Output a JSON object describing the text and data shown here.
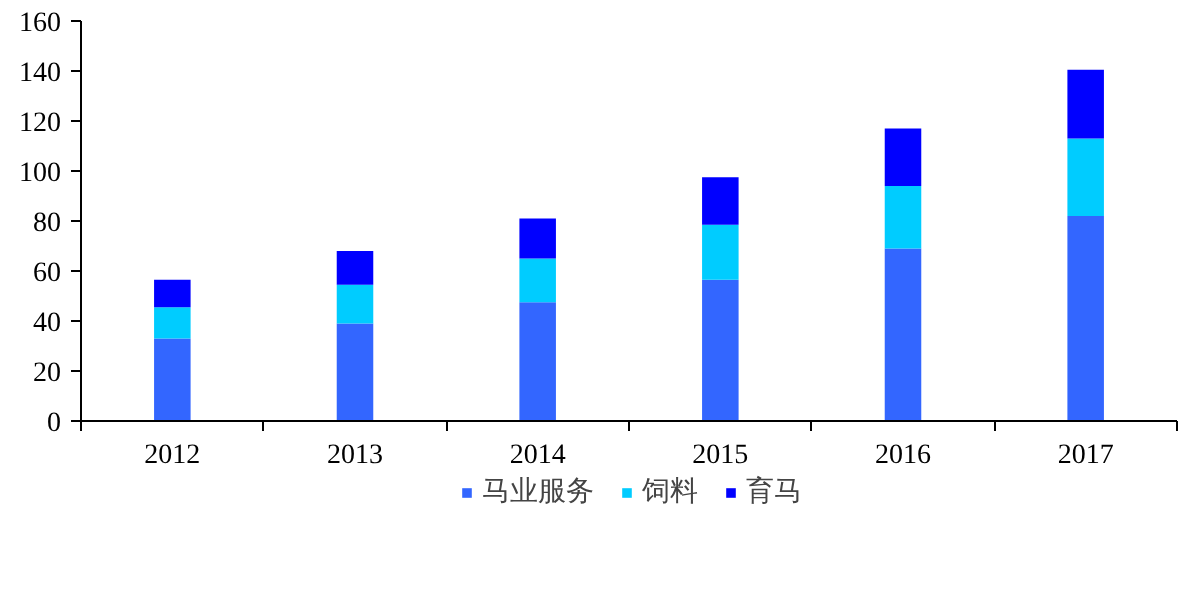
{
  "chart_data": {
    "type": "bar",
    "stacked": true,
    "categories": [
      "2012",
      "2013",
      "2014",
      "2015",
      "2016",
      "2017"
    ],
    "series": [
      {
        "name": "马业服务",
        "color": "#3366ff",
        "values": [
          33,
          39,
          47.5,
          56.5,
          69,
          82
        ]
      },
      {
        "name": "饲料",
        "color": "#00ccff",
        "values": [
          12.5,
          15.5,
          17.5,
          22,
          25,
          31
        ]
      },
      {
        "name": "育马",
        "color": "#0000ff",
        "values": [
          11,
          13.5,
          16,
          19,
          23,
          27.5
        ]
      }
    ],
    "ylim": [
      0,
      160
    ],
    "yticks": [
      0,
      20,
      40,
      60,
      80,
      100,
      120,
      140,
      160
    ],
    "grid": false,
    "legend": "bottom"
  }
}
